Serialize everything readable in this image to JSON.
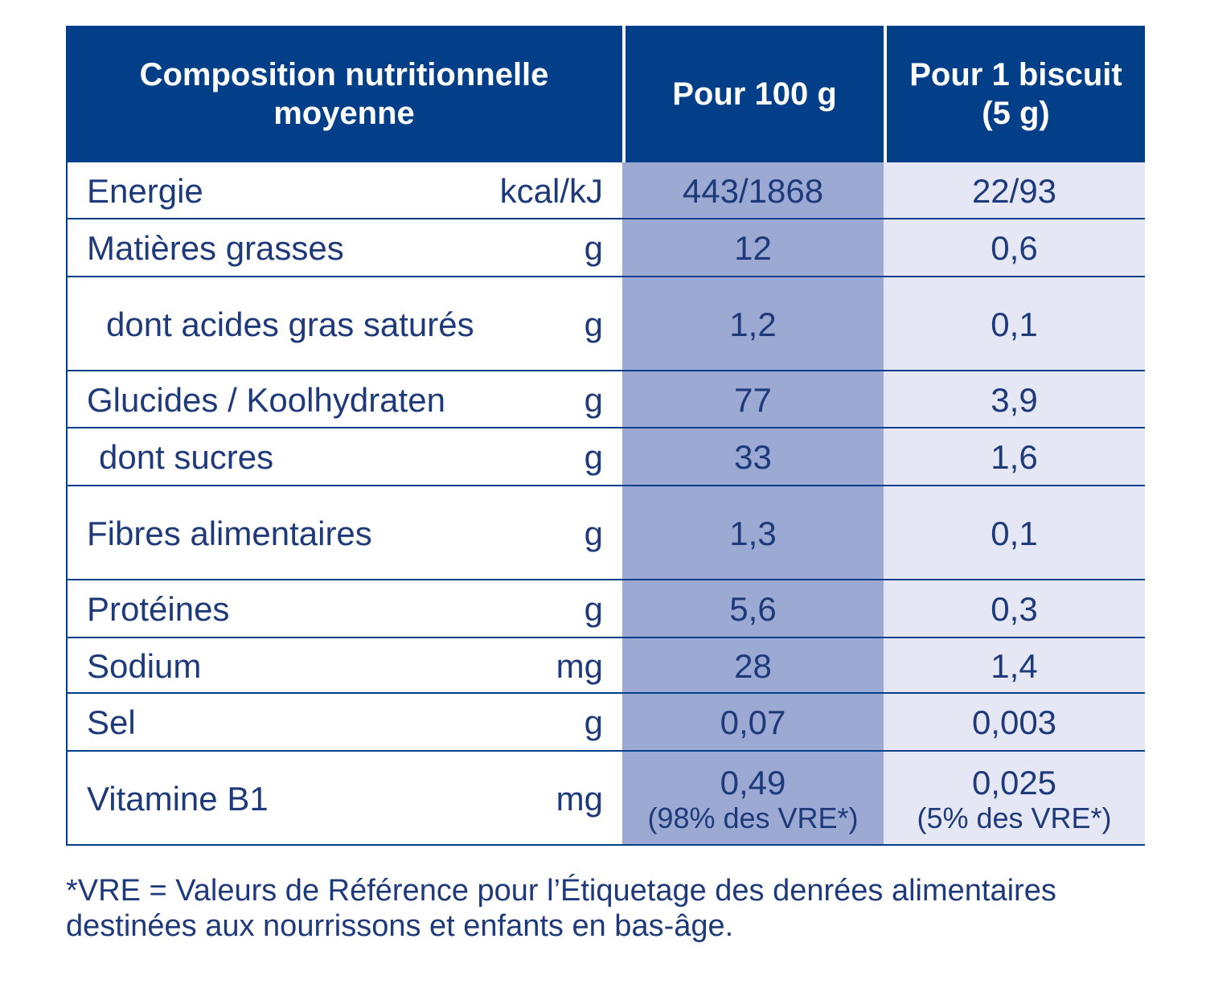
{
  "header": {
    "col1_line1": "Composition nutritionnelle",
    "col1_line2": "moyenne",
    "col2": "Pour 100 g",
    "col3_line1": "Pour 1 biscuit",
    "col3_line2": "(5 g)"
  },
  "rows": [
    {
      "label": "Energie",
      "unit": "kcal/kJ",
      "per100": "443/1868",
      "perBiscuit": "22/93"
    },
    {
      "label": "Matières grasses",
      "unit": "g",
      "per100": "12",
      "perBiscuit": "0,6"
    },
    {
      "label": "dont acides gras saturés",
      "unit": "g",
      "per100": "1,2",
      "perBiscuit": "0,1"
    },
    {
      "label": "Glucides / Koolhydraten",
      "unit": "g",
      "per100": "77",
      "perBiscuit": "3,9"
    },
    {
      "label": "dont sucres",
      "unit": "g",
      "per100": "33",
      "perBiscuit": "1,6"
    },
    {
      "label": "Fibres alimentaires",
      "unit": "g",
      "per100": "1,3",
      "perBiscuit": "0,1"
    },
    {
      "label": "Protéines",
      "unit": "g",
      "per100": "5,6",
      "perBiscuit": "0,3"
    },
    {
      "label": "Sodium",
      "unit": "mg",
      "per100": "28",
      "perBiscuit": "1,4"
    },
    {
      "label": "Sel",
      "unit": "g",
      "per100": "0,07",
      "perBiscuit": "0,003"
    },
    {
      "label": "Vitamine B1",
      "unit": "mg",
      "per100": "0,49",
      "per100_note": "(98% des VRE*)",
      "perBiscuit": "0,025",
      "perBiscuit_note": "(5% des VRE*)"
    }
  ],
  "footnote": {
    "line1": "*VRE = Valeurs de Référence pour l’Étiquetage des denrées alimentaires",
    "line2": "destinées aux nourrissons et enfants en bas-âge."
  }
}
